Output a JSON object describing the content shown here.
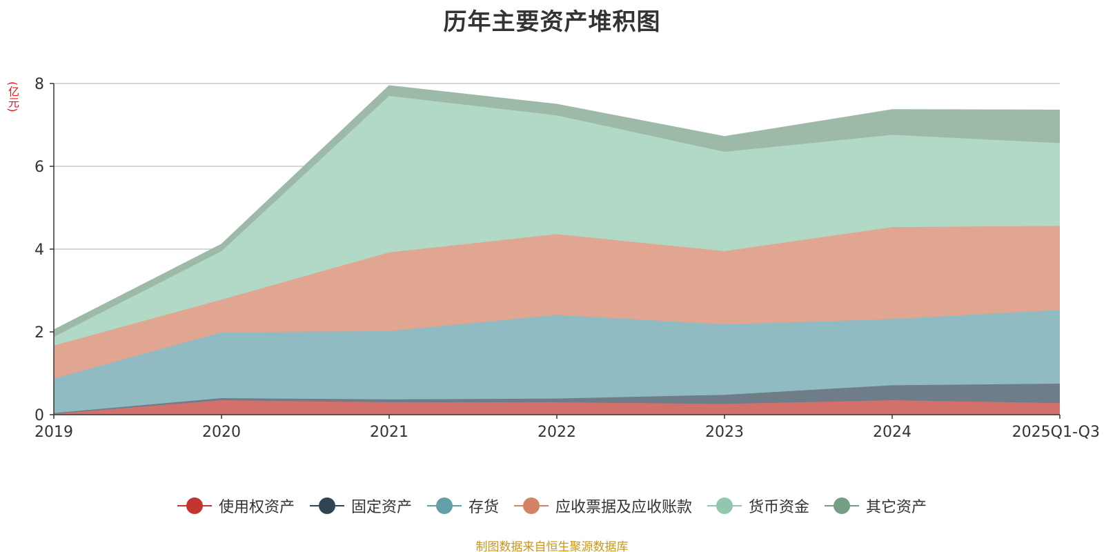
{
  "chart_data": {
    "type": "area",
    "stacked": true,
    "title": "历年主要资产堆积图",
    "ylabel": "(亿元)",
    "ylim": [
      0,
      8
    ],
    "yticks": [
      0,
      2,
      4,
      6,
      8
    ],
    "grid": true,
    "legend_position": "bottom",
    "categories": [
      "2019",
      "2020",
      "2021",
      "2022",
      "2023",
      "2024",
      "2025Q1-Q3"
    ],
    "series": [
      {
        "name": "使用权资产",
        "color": "#c23531",
        "fill": "#d4706c",
        "values": [
          0.02,
          0.35,
          0.3,
          0.3,
          0.26,
          0.35,
          0.28
        ]
      },
      {
        "name": "固定资产",
        "color": "#2f4554",
        "fill": "#6e7d88",
        "values": [
          0.02,
          0.05,
          0.07,
          0.09,
          0.22,
          0.36,
          0.47
        ]
      },
      {
        "name": "存货",
        "color": "#61a0a8",
        "fill": "#90bbc2",
        "values": [
          0.83,
          1.59,
          1.65,
          2.02,
          1.7,
          1.6,
          1.78
        ]
      },
      {
        "name": "应收票据及应收账款",
        "color": "#d48265",
        "fill": "#e0a691",
        "values": [
          0.8,
          0.79,
          1.9,
          1.95,
          1.77,
          2.22,
          2.03
        ]
      },
      {
        "name": "货币资金",
        "color": "#91c7ae",
        "fill": "#b2d8c6",
        "values": [
          0.21,
          1.17,
          3.78,
          2.87,
          2.4,
          2.23,
          2.0
        ]
      },
      {
        "name": "其它资产",
        "color": "#749f83",
        "fill": "#9db9a7",
        "values": [
          0.17,
          0.17,
          0.25,
          0.27,
          0.37,
          0.61,
          0.8
        ]
      }
    ]
  },
  "source_note": "制图数据来自恒生聚源数据库"
}
